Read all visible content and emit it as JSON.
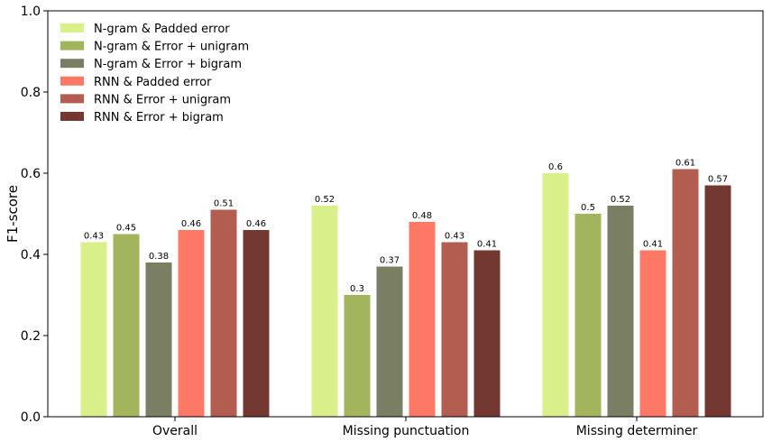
{
  "chart_data": {
    "type": "bar",
    "categories": [
      "Overall",
      "Missing punctuation",
      "Missing determiner"
    ],
    "ylabel": "F1-score",
    "xlabel": "",
    "ylim": [
      0,
      1.0
    ],
    "yticks": [
      "0.0",
      "0.2",
      "0.4",
      "0.6",
      "0.8",
      "1.0"
    ],
    "legend_position": "top-left",
    "grid": false,
    "series": [
      {
        "name": "N-gram & Padded error",
        "color": "#d9f08a",
        "values": [
          0.43,
          0.52,
          0.6
        ],
        "labels": [
          "0.43",
          "0.52",
          "0.6"
        ]
      },
      {
        "name": "N-gram & Error + unigram",
        "color": "#a3b55c",
        "values": [
          0.45,
          0.3,
          0.5
        ],
        "labels": [
          "0.45",
          "0.3",
          "0.5"
        ]
      },
      {
        "name": "N-gram & Error + bigram",
        "color": "#7a7f63",
        "values": [
          0.38,
          0.37,
          0.52
        ],
        "labels": [
          "0.38",
          "0.37",
          "0.52"
        ]
      },
      {
        "name": "RNN & Padded error",
        "color": "#ff7866",
        "values": [
          0.46,
          0.48,
          0.41
        ],
        "labels": [
          "0.46",
          "0.48",
          "0.41"
        ]
      },
      {
        "name": "RNN & Error + unigram",
        "color": "#b35c50",
        "values": [
          0.51,
          0.43,
          0.61
        ],
        "labels": [
          "0.51",
          "0.43",
          "0.61"
        ]
      },
      {
        "name": "RNN & Error + bigram",
        "color": "#733832",
        "values": [
          0.46,
          0.41,
          0.57
        ],
        "labels": [
          "0.46",
          "0.41",
          "0.57"
        ]
      }
    ]
  }
}
